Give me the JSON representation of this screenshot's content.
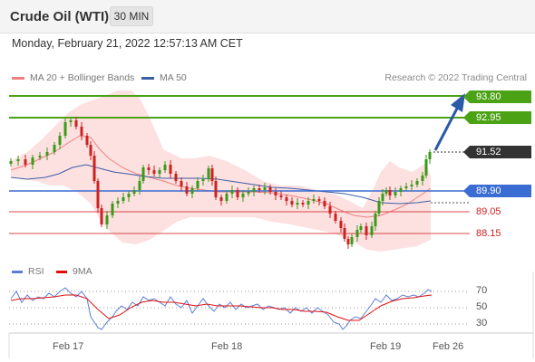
{
  "header": {
    "title": "Crude Oil (WTI)",
    "timeframe": "30 MIN",
    "timestamp": "Monday, February 21, 2022 12:57:13 AM CET"
  },
  "legend": {
    "ma20": {
      "label": "MA 20 + Bollinger Bands",
      "color": "#f08080"
    },
    "ma50": {
      "label": "MA 50",
      "color": "#3b5ea8"
    },
    "copyright": "Research © 2022 Trading Central"
  },
  "rsi_legend": {
    "rsi": {
      "label": "RSI",
      "color": "#5b7fd6"
    },
    "ma9": {
      "label": "9MA",
      "color": "#e01010"
    }
  },
  "price_levels": {
    "r2": "93.80",
    "r1": "92.95",
    "last": "91.52",
    "pivot": "89.90",
    "s1": "89.05",
    "s2": "88.15"
  },
  "rsi_levels": [
    "70",
    "50",
    "30"
  ],
  "date_labels": [
    "Feb 17",
    "Feb 18",
    "Feb 19",
    "Feb 26"
  ],
  "colors": {
    "up_candle": "#3a9a1a",
    "down_candle": "#cc2222",
    "resistance": "#4ca215",
    "pivot": "#3a6cd4",
    "support": "#d84a4a",
    "band_fill": "#fde0e0",
    "arrow": "#2a5aa8"
  },
  "chart_data": {
    "type": "line",
    "title": "Crude Oil (WTI)",
    "ylim": [
      87.6,
      94.0
    ],
    "series": [
      {
        "name": "MA 20 + Bollinger Bands",
        "values": [
          91.0,
          91.2,
          91.3,
          91.1,
          90.7,
          90.5,
          90.4,
          90.4,
          90.3,
          90.2,
          90.1,
          89.9,
          89.6,
          89.6,
          89.9,
          90.2
        ]
      },
      {
        "name": "MA 50",
        "values": [
          90.6,
          90.7,
          90.8,
          90.7,
          90.6,
          90.5,
          90.4,
          90.3,
          90.3,
          90.2,
          90.1,
          90.0,
          89.9,
          89.9,
          89.9,
          90.0
        ]
      },
      {
        "name": "Price",
        "values": [
          91.1,
          91.3,
          91.9,
          91.6,
          90.6,
          90.3,
          90.5,
          91.0,
          90.0,
          90.3,
          89.9,
          89.2,
          88.2,
          89.8,
          90.3,
          91.5
        ]
      }
    ],
    "levels": {
      "resistance_2": 93.8,
      "resistance_1": 92.95,
      "last": 91.52,
      "pivot": 89.9,
      "support_1": 89.05,
      "support_2": 88.15
    },
    "rsi": {
      "levels": [
        70,
        50,
        30
      ]
    },
    "x_labels": [
      "Feb 17",
      "Feb 18",
      "Feb 19",
      "Feb 26"
    ]
  }
}
